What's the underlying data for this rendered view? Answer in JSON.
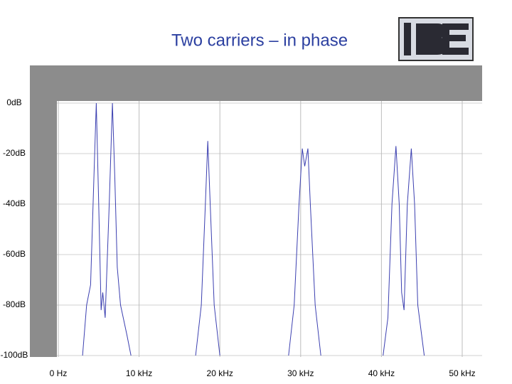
{
  "chart_data": {
    "type": "line",
    "title": "Two carriers – in phase",
    "xlim": [
      0,
      50
    ],
    "xticks": [
      {
        "value": 0,
        "label": "0 Hz"
      },
      {
        "value": 10,
        "label": "10 kHz"
      },
      {
        "value": 20,
        "label": "20 kHz"
      },
      {
        "value": 30,
        "label": "30 kHz"
      },
      {
        "value": 40,
        "label": "40 kHz"
      },
      {
        "value": 50,
        "label": "50 kHz"
      }
    ],
    "ylim": [
      -100,
      0
    ],
    "yticks": [
      {
        "value": 0,
        "label": "0dB"
      },
      {
        "value": -20,
        "label": "-20dB"
      },
      {
        "value": -40,
        "label": "-40dB"
      },
      {
        "value": -60,
        "label": "-60dB"
      },
      {
        "value": -80,
        "label": "-80dB"
      },
      {
        "value": -100,
        "label": "-100dB"
      }
    ],
    "grid": true,
    "series": [
      {
        "color": "#3b3fb0",
        "x": [
          3.0,
          3.5,
          4.0,
          4.4,
          4.7,
          5.0,
          5.3,
          5.5,
          5.8,
          6.3,
          6.7,
          7.0,
          7.3,
          7.7,
          8.5,
          9.0,
          null,
          17.0,
          17.7,
          18.2,
          18.5,
          18.8,
          19.3,
          20.0,
          null,
          28.5,
          29.2,
          29.8,
          30.2,
          30.5,
          30.9,
          31.2,
          31.8,
          32.5,
          null,
          40.2,
          40.8,
          41.3,
          41.8,
          42.2,
          42.5,
          42.8,
          43.2,
          43.7,
          44.1,
          44.5,
          45.3
        ],
        "values": [
          -100,
          -80,
          -72,
          -30,
          0,
          -40,
          -82,
          -75,
          -85,
          -40,
          0,
          -30,
          -65,
          -80,
          -92,
          -100,
          null,
          -100,
          -80,
          -40,
          -15,
          -40,
          -80,
          -100,
          null,
          -100,
          -80,
          -40,
          -18,
          -25,
          -18,
          -40,
          -80,
          -100,
          null,
          -100,
          -85,
          -40,
          -17,
          -40,
          -75,
          -82,
          -40,
          -18,
          -40,
          -80,
          -100
        ]
      }
    ]
  }
}
